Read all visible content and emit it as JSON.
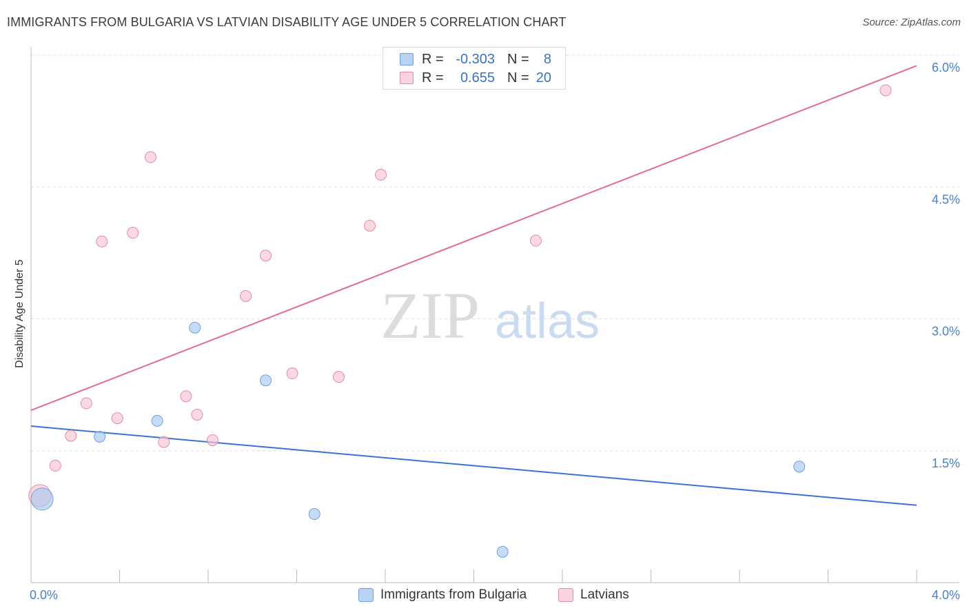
{
  "header": {
    "title": "IMMIGRANTS FROM BULGARIA VS LATVIAN DISABILITY AGE UNDER 5 CORRELATION CHART",
    "source": "Source: ZipAtlas.com"
  },
  "watermark": {
    "zip": "ZIP",
    "atlas": "atlas"
  },
  "legend": {
    "rows": [
      {
        "r_label": "R =",
        "r_value": "-0.303",
        "n_label": "N =",
        "n_value": "8",
        "color": "#a8c8f0",
        "border": "#6f9fd9"
      },
      {
        "r_label": "R =",
        "r_value": "0.655",
        "n_label": "N =",
        "n_value": "20",
        "color": "#f9c4d2",
        "border": "#e48aa3"
      }
    ]
  },
  "bottom_legend": [
    {
      "label": "Immigrants from Bulgaria",
      "color": "#b9d3f5",
      "border": "#6f9fd9"
    },
    {
      "label": "Latvians",
      "color": "#fad3de",
      "border": "#e48aa3"
    }
  ],
  "chart_data": {
    "type": "scatter",
    "title": "IMMIGRANTS FROM BULGARIA VS LATVIAN DISABILITY AGE UNDER 5 CORRELATION CHART",
    "xlabel": "",
    "ylabel": "Disability Age Under 5",
    "xlim": [
      0.0,
      4.0
    ],
    "ylim": [
      0.0,
      6.0
    ],
    "x_tick_labels": [
      "0.0%",
      "4.0%"
    ],
    "y_ticks": [
      1.5,
      3.0,
      4.5,
      6.0
    ],
    "y_tick_labels": [
      "1.5%",
      "3.0%",
      "4.5%",
      "6.0%"
    ],
    "grid": true,
    "series": [
      {
        "name": "Immigrants from Bulgaria",
        "color": "#a8c8f0",
        "line_color": "#3874d0",
        "points": [
          {
            "x": 0.05,
            "y": 0.95,
            "big": true
          },
          {
            "x": 0.31,
            "y": 1.66
          },
          {
            "x": 0.57,
            "y": 1.84
          },
          {
            "x": 0.74,
            "y": 2.9
          },
          {
            "x": 1.06,
            "y": 2.3
          },
          {
            "x": 1.28,
            "y": 0.78
          },
          {
            "x": 2.13,
            "y": 0.35
          },
          {
            "x": 3.47,
            "y": 1.32
          }
        ],
        "trend": {
          "x0": 0.0,
          "y0": 1.78,
          "x1": 4.0,
          "y1": 0.88
        }
      },
      {
        "name": "Latvians",
        "color": "#f9c4d2",
        "line_color": "#e06b93",
        "points": [
          {
            "x": 0.04,
            "y": 0.99,
            "big": true
          },
          {
            "x": 0.11,
            "y": 1.33
          },
          {
            "x": 0.18,
            "y": 1.67
          },
          {
            "x": 0.25,
            "y": 2.04
          },
          {
            "x": 0.32,
            "y": 3.88
          },
          {
            "x": 0.39,
            "y": 1.87
          },
          {
            "x": 0.46,
            "y": 3.98
          },
          {
            "x": 0.54,
            "y": 4.84
          },
          {
            "x": 0.6,
            "y": 1.6
          },
          {
            "x": 0.7,
            "y": 2.12
          },
          {
            "x": 0.75,
            "y": 1.91
          },
          {
            "x": 0.82,
            "y": 1.62
          },
          {
            "x": 0.97,
            "y": 3.26
          },
          {
            "x": 1.06,
            "y": 3.72
          },
          {
            "x": 1.18,
            "y": 2.38
          },
          {
            "x": 1.39,
            "y": 2.34
          },
          {
            "x": 1.53,
            "y": 4.06
          },
          {
            "x": 1.58,
            "y": 4.64
          },
          {
            "x": 2.28,
            "y": 3.89
          },
          {
            "x": 3.86,
            "y": 5.6
          }
        ],
        "trend": {
          "x0": 0.0,
          "y0": 1.96,
          "x1": 4.0,
          "y1": 5.88
        }
      }
    ]
  }
}
